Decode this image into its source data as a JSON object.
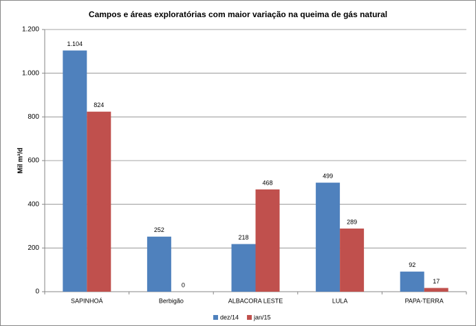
{
  "chart_data": {
    "type": "bar",
    "title": "Campos e áreas exploratórias com maior variação na queima de gás natural",
    "y_label": "Mil m³/d",
    "categories": [
      "SAPINHOÁ",
      "Berbigão",
      "ALBACORA LESTE",
      "LULA",
      "PAPA-TERRA"
    ],
    "series": [
      {
        "name": "dez/14",
        "color": "#4f81bd",
        "values": [
          1104,
          252,
          218,
          499,
          92
        ],
        "value_labels": [
          "1.104",
          "252",
          "218",
          "499",
          "92"
        ]
      },
      {
        "name": "jan/15",
        "color": "#c0504d",
        "values": [
          824,
          0,
          468,
          289,
          17
        ]
      }
    ],
    "ylim": [
      0,
      1200
    ],
    "yticks": [
      0,
      200,
      400,
      600,
      800,
      {
        "value": 1000,
        "label": "1.000"
      },
      {
        "value": 1200,
        "label": "1.200"
      }
    ],
    "grid": true,
    "legend": "bottom"
  }
}
